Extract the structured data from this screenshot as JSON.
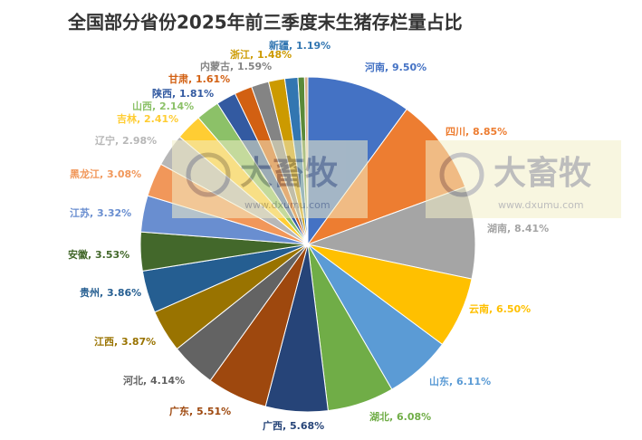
{
  "chart_data": {
    "type": "pie",
    "title": "全国部分省份2025年前三季度末生猪存栏量占比",
    "categories": [
      "河南",
      "四川",
      "湖南",
      "云南",
      "山东",
      "湖北",
      "广西",
      "广东",
      "河北",
      "江西",
      "贵州",
      "安徽",
      "江苏",
      "黑龙江",
      "辽宁",
      "吉林",
      "山西",
      "陕西",
      "甘肃",
      "内蒙古",
      "浙江",
      "新疆",
      null,
      null
    ],
    "values": [
      9.5,
      8.85,
      8.41,
      6.5,
      6.11,
      6.08,
      5.68,
      5.51,
      4.14,
      3.87,
      3.86,
      3.53,
      3.32,
      3.08,
      2.98,
      2.41,
      2.14,
      1.81,
      1.61,
      1.59,
      1.48,
      1.19,
      0.6,
      0.3
    ],
    "value_labels": [
      "9.50%",
      "8.85%",
      "8.41%",
      "6.50%",
      "6.11%",
      "6.08%",
      "5.68%",
      "5.51%",
      "4.14%",
      "3.87%",
      "3.86%",
      "3.53%",
      "3.32%",
      "3.08%",
      "2.98%",
      "2.41%",
      "2.14%",
      "1.81%",
      "1.61%",
      "1.59%",
      "1.48%",
      "1.19%",
      null,
      null
    ],
    "label_separator": ", ",
    "colors": [
      "#4472c4",
      "#ed7d31",
      "#a5a5a5",
      "#ffc000",
      "#5b9bd5",
      "#70ad47",
      "#264478",
      "#9e480e",
      "#636363",
      "#997300",
      "#255e91",
      "#43682b",
      "#698ed0",
      "#f1975a",
      "#b7b7b7",
      "#ffcd33",
      "#8cc168",
      "#335aa1",
      "#d26012",
      "#848484",
      "#cc9a00",
      "#3276b1",
      "#5a8a39",
      "#d9b38c"
    ],
    "watermark": {
      "text": "大畜牧",
      "url": "www.dxumu.com"
    }
  }
}
